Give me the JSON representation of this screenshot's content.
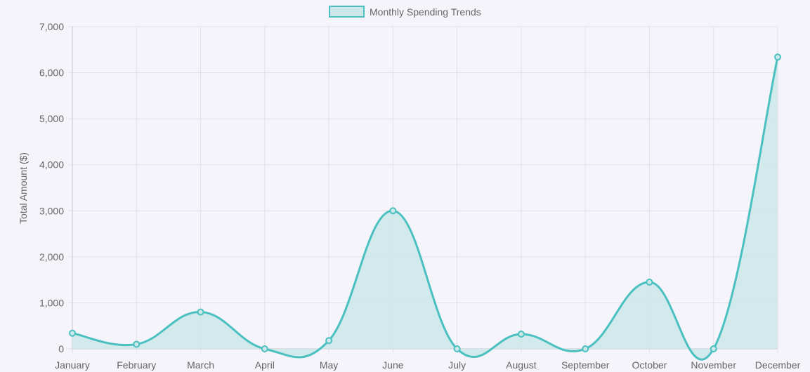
{
  "chart_data": {
    "type": "area",
    "title": "",
    "xlabel": "",
    "ylabel": "Total Amount ($)",
    "categories": [
      "January",
      "February",
      "March",
      "April",
      "May",
      "June",
      "July",
      "August",
      "September",
      "October",
      "November",
      "December"
    ],
    "series": [
      {
        "name": "Monthly Spending Trends",
        "values": [
          340,
          100,
          800,
          0,
          180,
          3000,
          0,
          320,
          0,
          1450,
          0,
          6340
        ]
      }
    ],
    "ylim": [
      0,
      7000
    ],
    "yticks": [
      0,
      1000,
      2000,
      3000,
      4000,
      5000,
      6000,
      7000
    ],
    "ytick_labels": [
      "0",
      "1,000",
      "2,000",
      "3,000",
      "4,000",
      "5,000",
      "6,000",
      "7,000"
    ],
    "grid": true,
    "legend_position": "top-center",
    "colors": {
      "line": "#4bc0c0",
      "fill": "#cde8ea",
      "grid": "#e1e0e6",
      "text": "#666666",
      "background": "#f5f4fa"
    }
  }
}
